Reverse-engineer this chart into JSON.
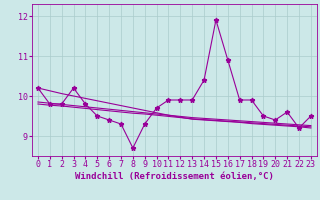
{
  "x": [
    0,
    1,
    2,
    3,
    4,
    5,
    6,
    7,
    8,
    9,
    10,
    11,
    12,
    13,
    14,
    15,
    16,
    17,
    18,
    19,
    20,
    21,
    22,
    23
  ],
  "y_main": [
    10.2,
    9.8,
    9.8,
    10.2,
    9.8,
    9.5,
    9.4,
    9.3,
    8.7,
    9.3,
    9.7,
    9.9,
    9.9,
    9.9,
    10.4,
    11.9,
    10.9,
    9.9,
    9.9,
    9.5,
    9.4,
    9.6,
    9.2,
    9.5
  ],
  "y_trend1": [
    10.2,
    10.13,
    10.06,
    10.0,
    9.94,
    9.88,
    9.82,
    9.76,
    9.7,
    9.64,
    9.58,
    9.52,
    9.47,
    9.42,
    9.4,
    9.38,
    9.36,
    9.34,
    9.31,
    9.29,
    9.27,
    9.25,
    9.23,
    9.2
  ],
  "y_trend2": [
    9.85,
    9.82,
    9.79,
    9.76,
    9.73,
    9.7,
    9.67,
    9.64,
    9.61,
    9.58,
    9.55,
    9.52,
    9.49,
    9.46,
    9.44,
    9.42,
    9.4,
    9.38,
    9.36,
    9.34,
    9.32,
    9.3,
    9.28,
    9.26
  ],
  "y_trend3": [
    9.8,
    9.77,
    9.75,
    9.72,
    9.69,
    9.66,
    9.63,
    9.6,
    9.57,
    9.55,
    9.52,
    9.49,
    9.46,
    9.43,
    9.41,
    9.39,
    9.37,
    9.35,
    9.33,
    9.31,
    9.29,
    9.27,
    9.25,
    9.23
  ],
  "bg_color": "#cce8e8",
  "line_color": "#990099",
  "grid_color": "#aacccc",
  "xlabel": "Windchill (Refroidissement éolien,°C)",
  "ylim": [
    8.5,
    12.3
  ],
  "xlim": [
    -0.5,
    23.5
  ],
  "yticks": [
    9,
    10,
    11,
    12
  ],
  "xticks": [
    0,
    1,
    2,
    3,
    4,
    5,
    6,
    7,
    8,
    9,
    10,
    11,
    12,
    13,
    14,
    15,
    16,
    17,
    18,
    19,
    20,
    21,
    22,
    23
  ],
  "label_fontsize": 6.5,
  "tick_fontsize": 6,
  "markersize": 3.5,
  "linewidth": 0.8
}
